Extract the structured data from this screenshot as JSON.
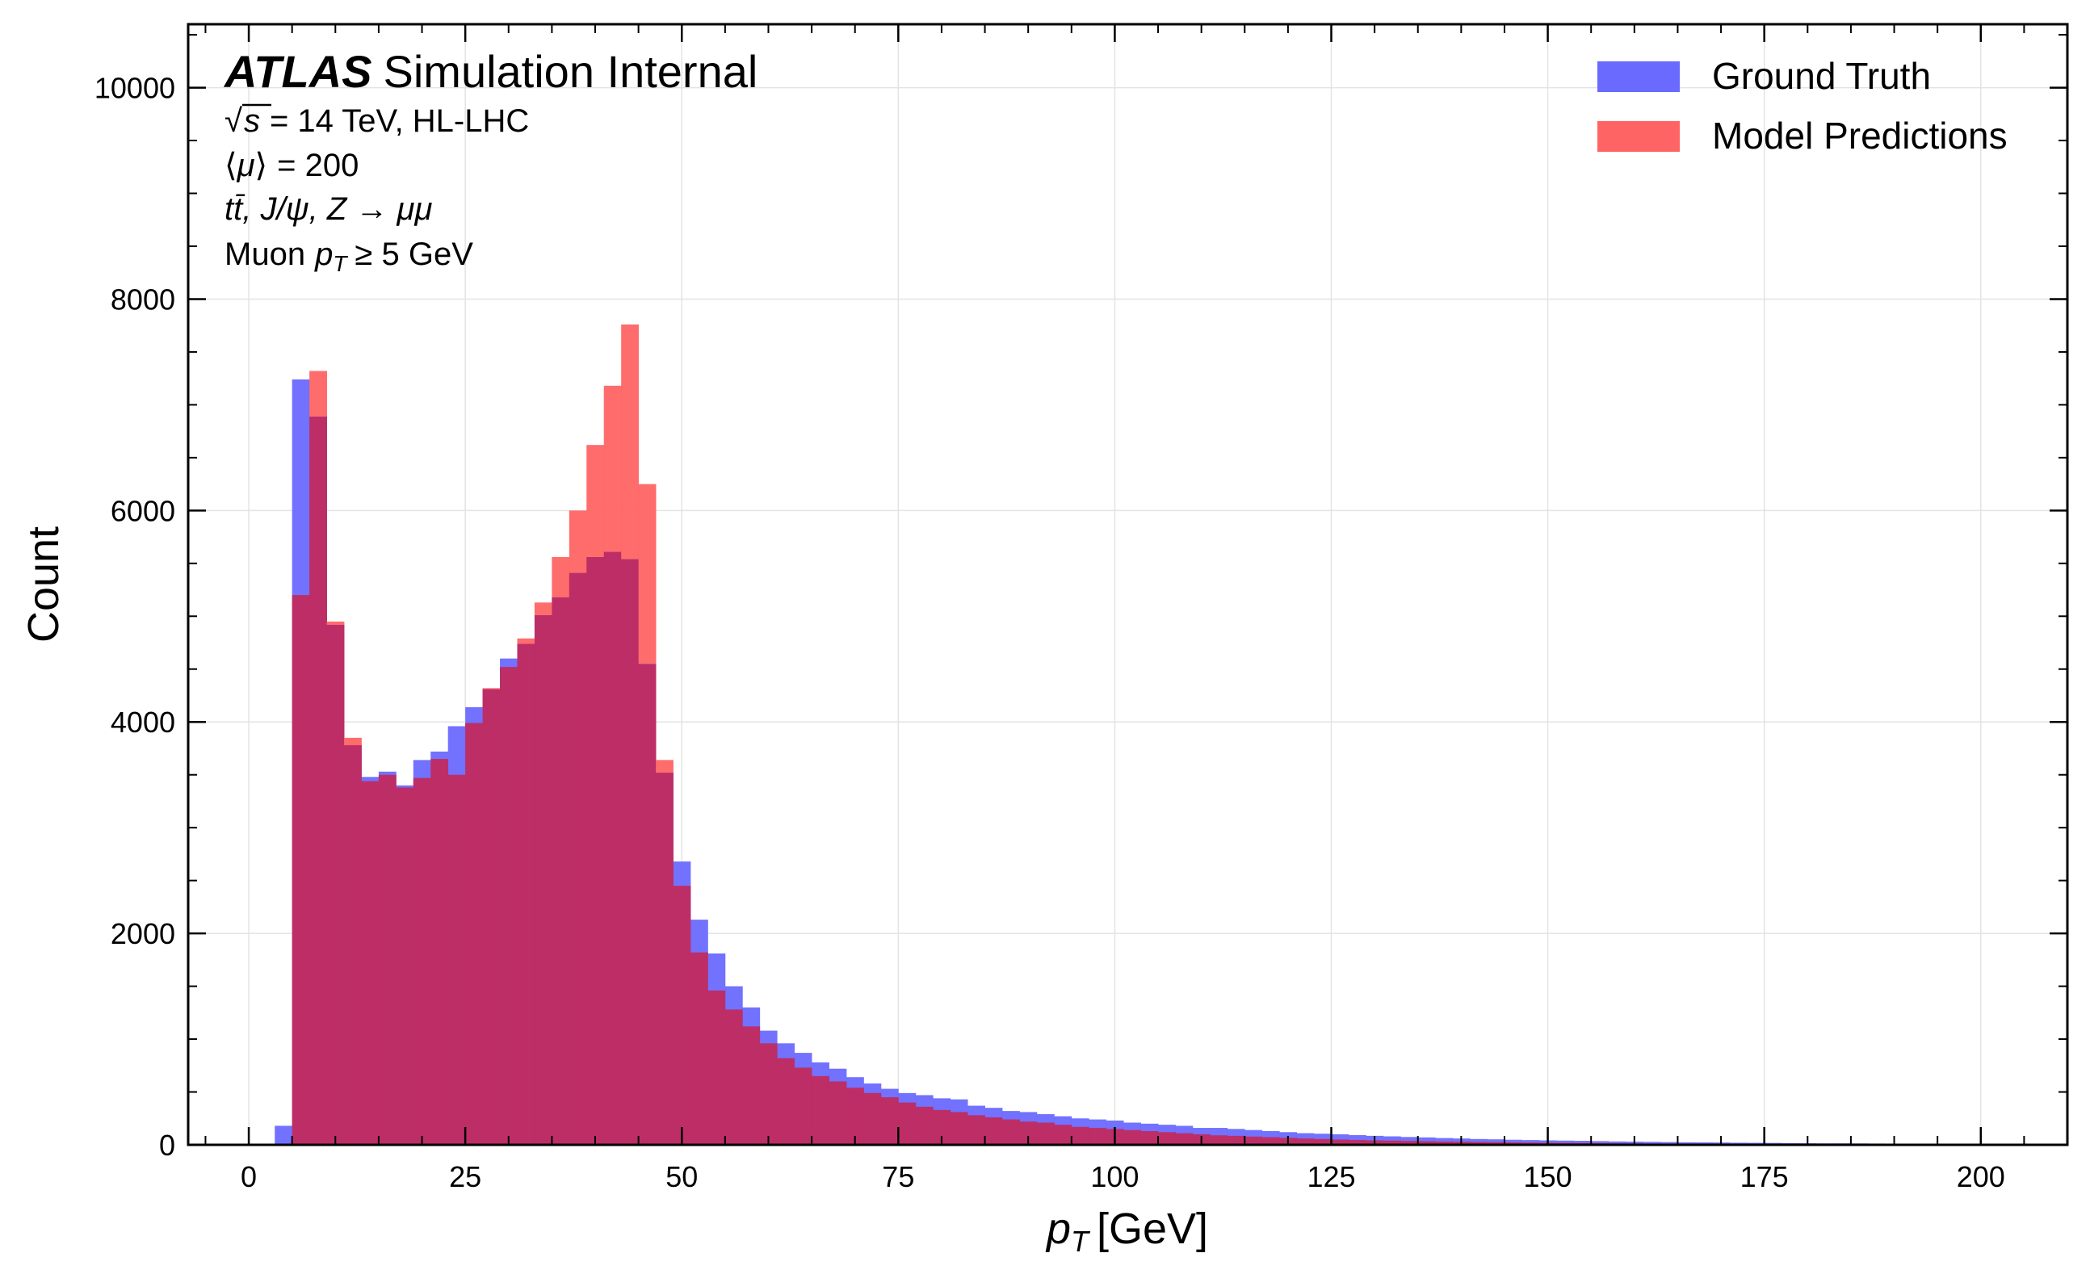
{
  "chart_data": {
    "type": "histogram",
    "xlabel_var": "p",
    "xlabel_sub": "T",
    "xlabel_unit": "[GeV]",
    "ylabel": "Count",
    "xlim": [
      -7,
      210
    ],
    "ylim": [
      0,
      10600
    ],
    "xticks": [
      0,
      25,
      50,
      75,
      100,
      125,
      150,
      175,
      200
    ],
    "yticks": [
      0,
      2000,
      4000,
      6000,
      8000,
      10000
    ],
    "grid": true,
    "legend_position": "top-right",
    "bin_start": 3,
    "bin_width": 2,
    "annotation": {
      "experiment": "ATLAS",
      "status": "Simulation Internal",
      "energy_value": "= 14 TeV, HL-LHC",
      "pileup_value": "= 200",
      "processes": "tt̄, J/ψ, Z → μμ",
      "cut_prefix": "Muon",
      "cut_suffix": "≥ 5 GeV"
    },
    "series": [
      {
        "name": "Ground Truth",
        "color": "#6a6aff",
        "values": [
          180,
          7240,
          6890,
          4920,
          3780,
          3480,
          3530,
          3400,
          3640,
          3720,
          3960,
          4140,
          4310,
          4600,
          4740,
          5010,
          5180,
          5410,
          5560,
          5610,
          5540,
          4550,
          3520,
          2680,
          2130,
          1810,
          1500,
          1300,
          1080,
          960,
          870,
          780,
          720,
          640,
          580,
          530,
          490,
          470,
          440,
          430,
          370,
          350,
          320,
          310,
          290,
          270,
          250,
          240,
          230,
          210,
          200,
          190,
          180,
          160,
          160,
          150,
          140,
          130,
          120,
          110,
          105,
          100,
          92,
          85,
          80,
          74,
          70,
          64,
          60,
          55,
          52,
          48,
          45,
          42,
          40,
          38,
          35,
          32,
          30,
          28,
          26,
          24,
          23,
          22,
          20,
          19,
          18,
          16,
          15,
          14,
          14,
          13,
          12,
          11,
          10,
          10,
          9,
          8
        ]
      },
      {
        "name": "Model Predictions",
        "color": "#ff6464",
        "values": [
          0,
          5200,
          7320,
          4950,
          3850,
          3440,
          3500,
          3380,
          3470,
          3650,
          3500,
          3990,
          4320,
          4520,
          4790,
          5130,
          5560,
          6000,
          6620,
          7180,
          7760,
          6250,
          3640,
          2450,
          1820,
          1460,
          1280,
          1120,
          960,
          820,
          730,
          650,
          600,
          540,
          490,
          450,
          400,
          360,
          330,
          310,
          280,
          260,
          240,
          220,
          210,
          190,
          170,
          160,
          150,
          140,
          130,
          120,
          110,
          100,
          90,
          85,
          78,
          72,
          66,
          60,
          55,
          50,
          46,
          42,
          40,
          37,
          34,
          31,
          29,
          27,
          25,
          23,
          21,
          19,
          18,
          17,
          15,
          14,
          13,
          12,
          11,
          10,
          10,
          9,
          9,
          8,
          8,
          7,
          7,
          6,
          6,
          5,
          5,
          5,
          4,
          4,
          4,
          3
        ]
      }
    ]
  }
}
